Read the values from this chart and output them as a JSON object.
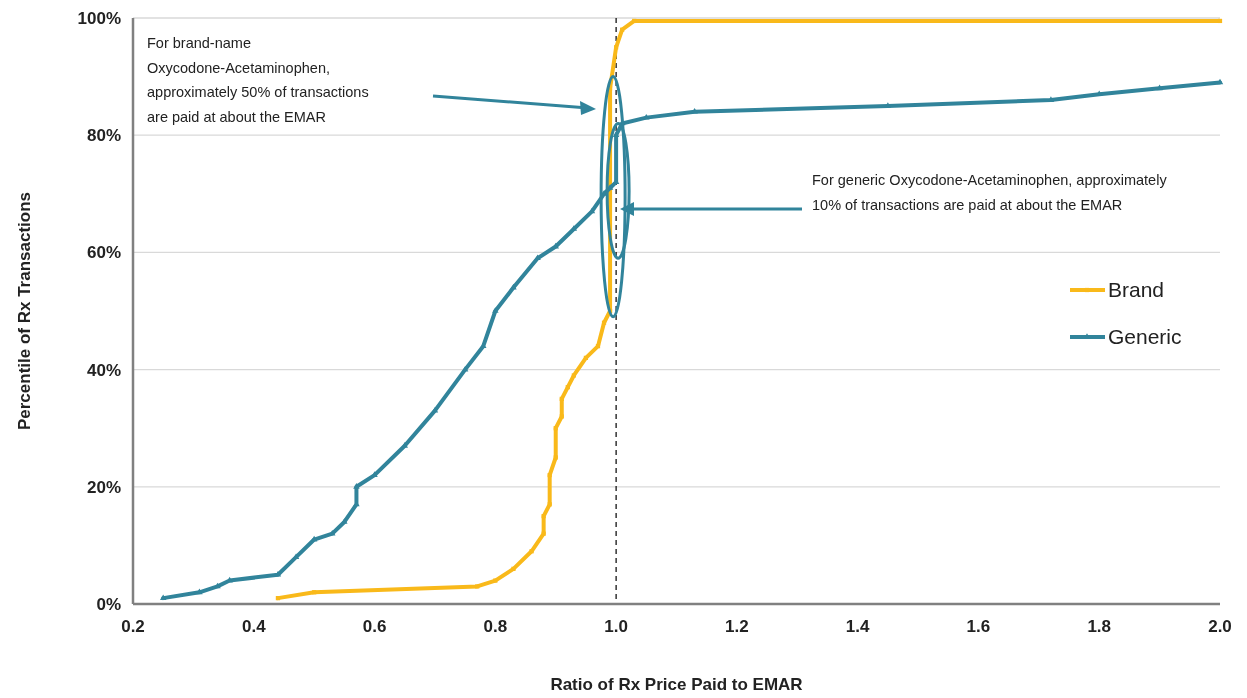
{
  "chart_data": {
    "type": "line",
    "xlabel": "Ratio of Rx Price Paid to EMAR",
    "ylabel": "Percentile of Rx Transactions",
    "xlim": [
      0.2,
      2.0
    ],
    "xticks": [
      {
        "value": 0.2,
        "label": "0.2"
      },
      {
        "value": 0.4,
        "label": "0.4"
      },
      {
        "value": 0.6,
        "label": "0.6"
      },
      {
        "value": 0.8,
        "label": "0.8"
      },
      {
        "value": 1.0,
        "label": "1.0"
      },
      {
        "value": 1.2,
        "label": "1.2"
      },
      {
        "value": 1.4,
        "label": "1.4"
      },
      {
        "value": 1.6,
        "label": "1.6"
      },
      {
        "value": 1.8,
        "label": "1.8"
      },
      {
        "value": 2.0,
        "label": "2.0"
      }
    ],
    "ylim": [
      0,
      100
    ],
    "yticks": [
      {
        "value": 0,
        "label": "0%"
      },
      {
        "value": 20,
        "label": "20%"
      },
      {
        "value": 40,
        "label": "40%"
      },
      {
        "value": 60,
        "label": "60%"
      },
      {
        "value": 80,
        "label": "80%"
      },
      {
        "value": 100,
        "label": "100%"
      }
    ],
    "grid": "y",
    "legend": "right",
    "line_style": "solid",
    "series": [
      {
        "name": "Brand",
        "color": "#f9b91a",
        "marker": "square",
        "x": [
          0.44,
          0.5,
          0.77,
          0.8,
          0.83,
          0.86,
          0.88,
          0.88,
          0.89,
          0.89,
          0.9,
          0.9,
          0.91,
          0.91,
          0.92,
          0.93,
          0.95,
          0.97,
          0.98,
          0.99,
          0.99,
          1.0,
          1.01,
          1.03,
          2.0
        ],
        "values": [
          1,
          2,
          3,
          4,
          6,
          9,
          12,
          15,
          17,
          22,
          25,
          30,
          32,
          35,
          37,
          39,
          42,
          44,
          48,
          50,
          88,
          95,
          98,
          99.5,
          99.5
        ]
      },
      {
        "name": "Generic",
        "color": "#31849b",
        "marker": "triangle",
        "x": [
          0.25,
          0.31,
          0.34,
          0.36,
          0.44,
          0.47,
          0.5,
          0.53,
          0.55,
          0.57,
          0.57,
          0.6,
          0.65,
          0.7,
          0.75,
          0.78,
          0.8,
          0.83,
          0.87,
          0.9,
          0.93,
          0.96,
          0.98,
          0.99,
          1.0,
          1.0,
          1.01,
          1.05,
          1.13,
          1.45,
          1.72,
          1.8,
          1.9,
          2.0
        ],
        "values": [
          1,
          2,
          3,
          4,
          5,
          8,
          11,
          12,
          14,
          17,
          20,
          22,
          27,
          33,
          40,
          44,
          50,
          54,
          59,
          61,
          64,
          67,
          70,
          71,
          72,
          80,
          82,
          83,
          84,
          85,
          86,
          87,
          88,
          89
        ]
      }
    ],
    "ref_lines": [
      {
        "axis": "x",
        "value": 1.0,
        "color": "#000000",
        "line_style": "dashed"
      }
    ],
    "annotations": [
      "For brand-name Oxycodone-Acetaminophen, approximately 50%  of transactions are paid at about the EMAR",
      "For generic Oxycodone-Acetaminophen, approximately 10% of transactions are paid at about the EMAR"
    ]
  }
}
